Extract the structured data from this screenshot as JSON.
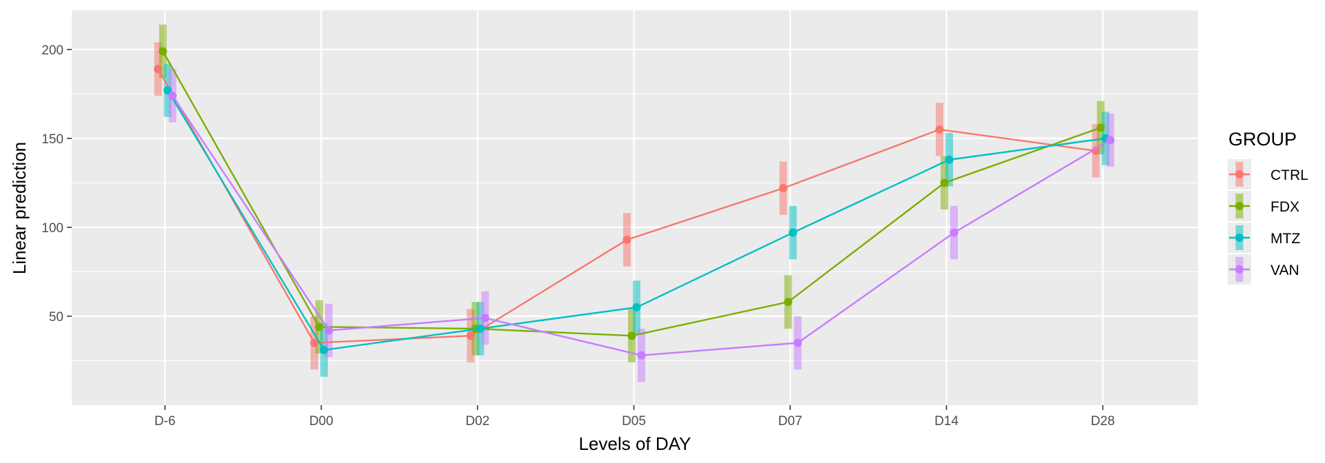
{
  "chart_data": {
    "type": "line",
    "xlabel": "Levels of DAY",
    "ylabel": "Linear prediction",
    "categories": [
      "D-6",
      "D00",
      "D02",
      "D05",
      "D07",
      "D14",
      "D28"
    ],
    "yticks": [
      50,
      100,
      150,
      200
    ],
    "ylim": [
      0,
      222
    ],
    "grid": true,
    "legend": {
      "title": "GROUP",
      "position": "right"
    },
    "error_bars": "confidence interval shown as vertical bars",
    "series": [
      {
        "name": "CTRL",
        "color": "#F8766D",
        "values": [
          189,
          35,
          39,
          93,
          122,
          155,
          143
        ],
        "lower": [
          174,
          20,
          24,
          78,
          107,
          140,
          128
        ],
        "upper": [
          204,
          50,
          54,
          108,
          137,
          170,
          158
        ]
      },
      {
        "name": "FDX",
        "color": "#7CAE00",
        "values": [
          199,
          44,
          43,
          39,
          58,
          125,
          156
        ],
        "lower": [
          184,
          29,
          28,
          24,
          43,
          110,
          141
        ],
        "upper": [
          214,
          59,
          58,
          54,
          73,
          140,
          171
        ]
      },
      {
        "name": "MTZ",
        "color": "#00BFC4",
        "values": [
          177,
          31,
          43,
          55,
          97,
          138,
          150
        ],
        "lower": [
          162,
          16,
          28,
          40,
          82,
          123,
          135
        ],
        "upper": [
          192,
          46,
          58,
          70,
          112,
          153,
          165
        ]
      },
      {
        "name": "VAN",
        "color": "#C77CFF",
        "values": [
          174,
          42,
          49,
          28,
          35,
          97,
          149
        ],
        "lower": [
          159,
          27,
          34,
          13,
          20,
          82,
          134
        ],
        "upper": [
          189,
          57,
          64,
          43,
          50,
          112,
          164
        ]
      }
    ]
  }
}
